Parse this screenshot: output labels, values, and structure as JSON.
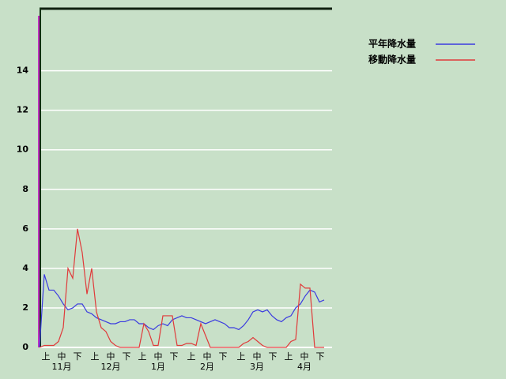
{
  "chart_data": {
    "type": "line",
    "x": [
      0,
      3,
      6,
      9,
      12,
      15,
      18,
      21,
      24,
      27,
      30,
      33,
      36,
      39,
      42,
      45,
      48,
      51,
      54,
      57,
      60,
      63,
      66,
      69,
      72,
      75,
      78,
      81,
      84,
      87,
      90,
      93,
      96,
      99,
      102,
      105,
      108,
      111,
      114,
      117,
      120,
      123,
      126,
      129,
      132,
      135,
      138,
      141,
      144,
      147,
      150,
      153,
      156,
      159,
      162,
      165,
      168,
      171,
      174,
      177,
      180
    ],
    "series": [
      {
        "name": "平年降水量",
        "color": "#3a3ae0",
        "values": [
          0,
          3.7,
          2.9,
          2.9,
          2.6,
          2.2,
          1.9,
          2.0,
          2.2,
          2.2,
          1.8,
          1.7,
          1.5,
          1.4,
          1.3,
          1.2,
          1.2,
          1.3,
          1.3,
          1.4,
          1.4,
          1.2,
          1.2,
          1.0,
          0.9,
          1.1,
          1.2,
          1.1,
          1.4,
          1.5,
          1.6,
          1.5,
          1.5,
          1.4,
          1.3,
          1.2,
          1.3,
          1.4,
          1.3,
          1.2,
          1.0,
          1.0,
          0.9,
          1.1,
          1.4,
          1.8,
          1.9,
          1.8,
          1.9,
          1.6,
          1.4,
          1.3,
          1.5,
          1.6,
          2.0,
          2.2,
          2.6,
          2.9,
          2.8,
          2.3,
          2.4
        ]
      },
      {
        "name": "移動降水量",
        "color": "#e03a3a",
        "values": [
          0,
          0.1,
          0.1,
          0.1,
          0.3,
          1.0,
          4.0,
          3.5,
          6.0,
          4.8,
          2.7,
          4.0,
          1.8,
          1.0,
          0.8,
          0.3,
          0.1,
          0,
          0,
          0,
          0,
          0,
          1.2,
          0.8,
          0.1,
          0.1,
          1.6,
          1.6,
          1.6,
          0.1,
          0.1,
          0.2,
          0.2,
          0.1,
          1.2,
          0.6,
          0,
          0,
          0,
          0,
          0,
          0,
          0,
          0.2,
          0.3,
          0.5,
          0.3,
          0.1,
          0,
          0,
          0,
          0,
          0,
          0.3,
          0.4,
          3.2,
          3.0,
          3.0,
          0,
          0,
          0
        ]
      }
    ],
    "xlim": [
      0,
      185
    ],
    "xticks": [
      {
        "value": 4,
        "label": "上"
      },
      {
        "value": 14,
        "label": "中"
      },
      {
        "value": 24,
        "label": "下"
      },
      {
        "value": 35,
        "label": "上"
      },
      {
        "value": 45,
        "label": "中"
      },
      {
        "value": 55,
        "label": "下"
      },
      {
        "value": 65,
        "label": "上"
      },
      {
        "value": 75,
        "label": "中"
      },
      {
        "value": 85,
        "label": "下"
      },
      {
        "value": 96,
        "label": "上"
      },
      {
        "value": 106,
        "label": "中"
      },
      {
        "value": 116,
        "label": "下"
      },
      {
        "value": 127.5,
        "label": "上"
      },
      {
        "value": 137.5,
        "label": "中"
      },
      {
        "value": 147.5,
        "label": "下"
      },
      {
        "value": 157.5,
        "label": "上"
      },
      {
        "value": 167.5,
        "label": "中"
      },
      {
        "value": 177.5,
        "label": "下"
      }
    ],
    "month_labels": [
      {
        "value": 14,
        "label": "11月"
      },
      {
        "value": 45,
        "label": "12月"
      },
      {
        "value": 75,
        "label": "1月"
      },
      {
        "value": 106,
        "label": "2月"
      },
      {
        "value": 137.5,
        "label": "3月"
      },
      {
        "value": 167.5,
        "label": "4月"
      }
    ],
    "ylim": [
      0,
      17.1
    ],
    "yticks": [
      0,
      2,
      4,
      6,
      8,
      10,
      12,
      14
    ],
    "grid": true
  }
}
